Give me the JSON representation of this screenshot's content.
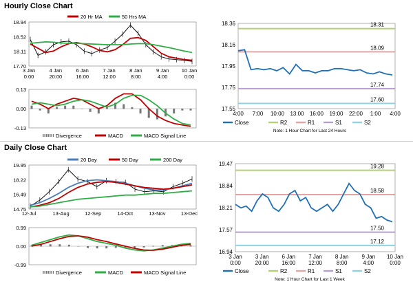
{
  "hourly": {
    "title": "Hourly Close Chart",
    "price": {
      "legend": [
        {
          "name": "20 Hr MA",
          "color": "#c00000"
        },
        {
          "name": "50 Hrs MA",
          "color": "#2eae45"
        }
      ],
      "y_ticks": [
        "18.94",
        "18.52",
        "18.11",
        "17.70"
      ],
      "x_ticks": [
        [
          "3 Jan",
          "0:00"
        ],
        [
          "4 Jan",
          "20:00"
        ],
        [
          "6 Jan",
          "16:00"
        ],
        [
          "7 Jan",
          "12:00"
        ],
        [
          "8 Jan",
          "8:00"
        ],
        [
          "9 Jan",
          "4:00"
        ],
        [
          "10 Jan",
          "0:00"
        ]
      ]
    },
    "macd": {
      "y_ticks": [
        "0.13",
        "0.00",
        "-0.13"
      ],
      "legend": [
        {
          "name": "Divergence",
          "color": "#777777"
        },
        {
          "name": "MACD",
          "color": "#c00000"
        },
        {
          "name": "MACD Signal Line",
          "color": "#2eae45"
        }
      ]
    }
  },
  "daily": {
    "title": "Daily Close Chart",
    "price": {
      "legend": [
        {
          "name": "20 Day",
          "color": "#4a7ebb"
        },
        {
          "name": "50 Day",
          "color": "#c00000"
        },
        {
          "name": "200 Day",
          "color": "#2eae45"
        }
      ],
      "y_ticks": [
        "19.95",
        "18.22",
        "16.49",
        "14.75"
      ],
      "x_ticks": [
        "12-Jul",
        "13-Aug",
        "12-Sep",
        "14-Oct",
        "13-Nov",
        "13-Dec"
      ]
    },
    "macd": {
      "y_ticks": [
        "0.99",
        "0.00",
        "-0.99"
      ],
      "legend": [
        {
          "name": "Divergence",
          "color": "#777777"
        },
        {
          "name": "MACD",
          "color": "#2eae45"
        },
        {
          "name": "MACD Signal Line",
          "color": "#c00000"
        }
      ]
    }
  },
  "chart_data": [
    {
      "type": "line",
      "panel": "hourly-price",
      "title": "Hourly Close Chart",
      "ylim": [
        17.7,
        18.94
      ],
      "series": [
        {
          "name": "20 Hr MA",
          "color": "#c00000",
          "values": [
            18.32,
            18.2,
            18.08,
            18.12,
            18.24,
            18.33,
            18.36,
            18.32,
            18.24,
            18.14,
            18.1,
            18.16,
            18.3,
            18.48,
            18.5,
            18.42,
            18.24,
            18.06,
            17.96,
            17.92,
            17.88,
            17.86
          ]
        },
        {
          "name": "50 Hrs MA",
          "color": "#2eae45",
          "values": [
            18.34,
            18.36,
            18.38,
            18.37,
            18.35,
            18.34,
            18.34,
            18.33,
            18.32,
            18.31,
            18.3,
            18.3,
            18.3,
            18.32,
            18.33,
            18.33,
            18.3,
            18.26,
            18.22,
            18.17,
            18.12,
            18.08
          ]
        },
        {
          "name": "Close",
          "color": "#000000",
          "values": [
            18.45,
            18.0,
            18.1,
            18.3,
            18.38,
            18.4,
            18.3,
            18.12,
            18.05,
            18.15,
            18.22,
            18.4,
            18.6,
            18.85,
            18.62,
            18.3,
            18.1,
            17.96,
            17.9,
            17.88,
            17.86,
            17.83
          ]
        }
      ]
    },
    {
      "type": "line",
      "panel": "hourly-macd",
      "ylim": [
        -0.13,
        0.13
      ],
      "series": [
        {
          "name": "MACD",
          "color": "#c00000",
          "values": [
            0.05,
            0.03,
            0.0,
            0.03,
            0.05,
            0.07,
            0.06,
            0.03,
            0.0,
            0.02,
            0.07,
            0.1,
            0.1,
            0.06,
            0.0,
            -0.05,
            -0.08,
            -0.1,
            -0.11,
            -0.12
          ]
        },
        {
          "name": "MACD Signal Line",
          "color": "#2eae45",
          "values": [
            0.03,
            0.04,
            0.03,
            0.02,
            0.03,
            0.05,
            0.06,
            0.05,
            0.03,
            0.01,
            0.03,
            0.07,
            0.09,
            0.09,
            0.06,
            0.02,
            -0.03,
            -0.07,
            -0.1,
            -0.11
          ]
        },
        {
          "name": "Divergence",
          "color": "#777777",
          "values": [
            0.02,
            -0.01,
            -0.03,
            0.01,
            0.02,
            0.02,
            0.0,
            -0.02,
            -0.03,
            0.01,
            0.04,
            0.03,
            0.01,
            -0.03,
            -0.06,
            -0.07,
            -0.05,
            -0.03,
            -0.01,
            -0.01
          ]
        }
      ]
    },
    {
      "type": "line",
      "panel": "hourly-24h",
      "note": "Note: 1 Hour Chart for Last 24 Hours",
      "ylim": [
        17.55,
        18.36
      ],
      "y_ticks": [
        "18.36",
        "18.16",
        "17.95",
        "17.75",
        "17.55"
      ],
      "x_ticks": [
        "4:00",
        "7:00",
        "10:00",
        "13:00",
        "16:00",
        "19:00",
        "22:00",
        "1:00",
        "4:00"
      ],
      "series": [
        {
          "name": "Close",
          "color": "#1f6fb5",
          "values": [
            18.1,
            18.11,
            17.92,
            17.93,
            17.92,
            17.93,
            17.91,
            17.94,
            17.88,
            17.97,
            17.91,
            17.91,
            17.89,
            17.91,
            17.91,
            17.93,
            17.93,
            17.92,
            17.91,
            17.92,
            17.89,
            17.88,
            17.9,
            17.88,
            17.87
          ]
        },
        {
          "name": "R2",
          "color": "#b5cf76",
          "level": 18.31,
          "label": "18.31"
        },
        {
          "name": "R1",
          "color": "#e6a3a3",
          "level": 18.09,
          "label": "18.09"
        },
        {
          "name": "S1",
          "color": "#b69ed1",
          "level": 17.74,
          "label": "17.74"
        },
        {
          "name": "S2",
          "color": "#8fd3e0",
          "level": 17.6,
          "label": "17.60"
        }
      ]
    },
    {
      "type": "line",
      "panel": "daily-price",
      "title": "Daily Close Chart",
      "ylim": [
        14.75,
        19.95
      ],
      "series": [
        {
          "name": "20 Day",
          "color": "#4a7ebb",
          "values": [
            15.2,
            15.5,
            16.0,
            16.6,
            17.3,
            17.8,
            18.1,
            18.2,
            18.1,
            18.0,
            17.8,
            17.5,
            17.2,
            17.0,
            17.0,
            17.2,
            17.5,
            17.8
          ]
        },
        {
          "name": "50 Day",
          "color": "#c00000",
          "values": [
            15.0,
            15.2,
            15.5,
            16.0,
            16.7,
            17.3,
            17.7,
            17.9,
            18.0,
            17.9,
            17.7,
            17.5,
            17.3,
            17.2,
            17.1,
            17.2,
            17.4,
            17.6
          ]
        },
        {
          "name": "200 Day",
          "color": "#2eae45",
          "values": [
            15.0,
            15.1,
            15.3,
            15.5,
            15.7,
            15.9,
            16.0,
            16.1,
            16.2,
            16.3,
            16.4,
            16.4,
            16.5,
            16.6,
            16.6,
            16.7,
            16.8,
            16.9
          ]
        },
        {
          "name": "Close",
          "color": "#000000",
          "values": [
            15.1,
            15.8,
            16.8,
            18.0,
            19.4,
            18.3,
            18.0,
            17.4,
            18.1,
            18.0,
            17.9,
            17.1,
            16.8,
            16.9,
            16.8,
            17.4,
            17.8,
            18.3
          ]
        }
      ]
    },
    {
      "type": "line",
      "panel": "daily-macd",
      "ylim": [
        -0.99,
        0.99
      ],
      "series": [
        {
          "name": "MACD",
          "color": "#2eae45",
          "values": [
            0.05,
            0.2,
            0.35,
            0.5,
            0.6,
            0.55,
            0.4,
            0.25,
            0.15,
            0.05,
            -0.1,
            -0.2,
            -0.25,
            -0.2,
            -0.1,
            0.0,
            0.1,
            0.15
          ]
        },
        {
          "name": "MACD Signal Line",
          "color": "#c00000",
          "values": [
            0.0,
            0.1,
            0.25,
            0.4,
            0.52,
            0.55,
            0.48,
            0.35,
            0.25,
            0.12,
            0.0,
            -0.12,
            -0.2,
            -0.22,
            -0.16,
            -0.06,
            0.04,
            0.1
          ]
        },
        {
          "name": "Divergence",
          "color": "#777777",
          "values": [
            0.05,
            0.1,
            0.1,
            0.1,
            0.08,
            0.0,
            -0.08,
            -0.1,
            -0.1,
            -0.07,
            -0.1,
            -0.08,
            -0.05,
            0.02,
            0.06,
            0.06,
            0.06,
            0.05
          ]
        }
      ]
    },
    {
      "type": "line",
      "panel": "daily-week",
      "note": "Note: 1 Hour Chart for Last 1 Week",
      "ylim": [
        16.94,
        19.47
      ],
      "y_ticks": [
        "19.47",
        "18.84",
        "18.21",
        "17.57",
        "16.94"
      ],
      "x_ticks": [
        [
          "3 Jan",
          "0:00"
        ],
        [
          "3 Jan",
          "20:00"
        ],
        [
          "6 Jan",
          "16:00"
        ],
        [
          "7 Jan",
          "12:00"
        ],
        [
          "8 Jan",
          "8:00"
        ],
        [
          "9 Jan",
          "4:00"
        ],
        [
          "10 Jan",
          "0:00"
        ]
      ],
      "series": [
        {
          "name": "Close",
          "color": "#1f6fb5",
          "values": [
            18.3,
            18.2,
            18.25,
            18.1,
            18.4,
            18.6,
            18.5,
            18.2,
            18.1,
            18.3,
            18.6,
            18.7,
            18.4,
            18.5,
            18.2,
            18.1,
            18.2,
            18.3,
            18.1,
            18.3,
            18.6,
            18.9,
            18.7,
            18.6,
            18.3,
            18.2,
            17.9,
            17.95,
            17.85,
            17.8
          ]
        },
        {
          "name": "R2",
          "color": "#b5cf76",
          "level": 19.28,
          "label": "19.28"
        },
        {
          "name": "R1",
          "color": "#e6a3a3",
          "level": 18.58,
          "label": "18.58"
        },
        {
          "name": "S1",
          "color": "#b69ed1",
          "level": 17.5,
          "label": "17.50"
        },
        {
          "name": "S2",
          "color": "#8fd3e0",
          "level": 17.12,
          "label": "17.12"
        }
      ]
    }
  ]
}
